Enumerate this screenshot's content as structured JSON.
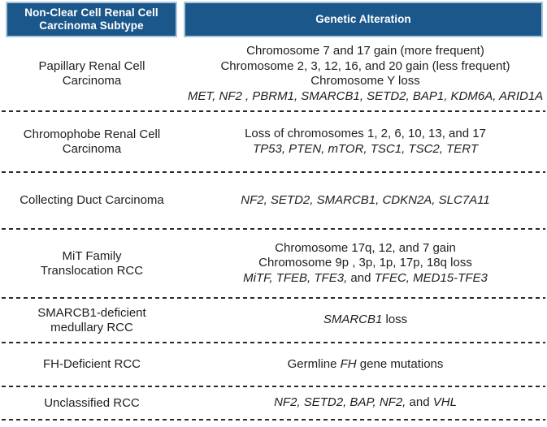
{
  "colors": {
    "header_background": "#1b578a",
    "header_border": "#a9c6dc",
    "header_text": "#ffffff",
    "body_text": "#1e1e1e",
    "separator": "#2a2a2a"
  },
  "header": {
    "subtype": "Non-Clear Cell Renal Cell\nCarcinoma Subtype",
    "alteration": "Genetic Alteration"
  },
  "rows": [
    {
      "subtype": "Papillary Renal Cell\nCarcinoma",
      "lines": [
        {
          "segs": [
            {
              "text": "Chromosome 7 and 17 gain (more frequent)",
              "italic": false
            }
          ]
        },
        {
          "segs": [
            {
              "text": "Chromosome 2, 3, 12, 16, and 20 gain (less frequent)",
              "italic": false
            }
          ]
        },
        {
          "segs": [
            {
              "text": "Chromosome Y loss",
              "italic": false
            }
          ]
        },
        {
          "segs": [
            {
              "text": "MET, NF2 , PBRM1, SMARCB1, SETD2, BAP1, KDM6A, ARID1A",
              "italic": true
            }
          ]
        }
      ]
    },
    {
      "subtype": "Chromophobe Renal Cell\nCarcinoma",
      "lines": [
        {
          "segs": [
            {
              "text": "Loss of chromosomes 1, 2, 6, 10, 13, and 17",
              "italic": false
            }
          ]
        },
        {
          "segs": [
            {
              "text": "TP53, PTEN, mTOR, TSC1, TSC2, TERT",
              "italic": true
            }
          ]
        }
      ]
    },
    {
      "subtype": "Collecting Duct Carcinoma",
      "lines": [
        {
          "segs": [
            {
              "text": "NF2, SETD2, SMARCB1, CDKN2A, SLC7A11",
              "italic": true
            }
          ]
        }
      ]
    },
    {
      "subtype": "MiT Family\nTranslocation RCC",
      "lines": [
        {
          "segs": [
            {
              "text": "Chromosome 17q, 12, and 7 gain",
              "italic": false
            }
          ]
        },
        {
          "segs": [
            {
              "text": "Chromosome 9p , 3p, 1p, 17p, 18q loss",
              "italic": false
            }
          ]
        },
        {
          "segs": [
            {
              "text": "MiTF, TFEB, TFE3,",
              "italic": true
            },
            {
              "text": " and ",
              "italic": false
            },
            {
              "text": "TFEC, MED15-TFE3",
              "italic": true
            }
          ]
        }
      ]
    },
    {
      "subtype": "SMARCB1-deficient\nmedullary RCC",
      "lines": [
        {
          "segs": [
            {
              "text": "SMARCB1",
              "italic": true
            },
            {
              "text": " loss",
              "italic": false
            }
          ]
        }
      ]
    },
    {
      "subtype": "FH-Deficient RCC",
      "lines": [
        {
          "segs": [
            {
              "text": "Germline ",
              "italic": false
            },
            {
              "text": "FH",
              "italic": true
            },
            {
              "text": " gene mutations",
              "italic": false
            }
          ]
        }
      ]
    },
    {
      "subtype": "Unclassified RCC",
      "lines": [
        {
          "segs": [
            {
              "text": "NF2, SETD2, BAP, NF2,",
              "italic": true
            },
            {
              "text": " and ",
              "italic": false
            },
            {
              "text": "VHL",
              "italic": true
            }
          ]
        }
      ]
    }
  ]
}
